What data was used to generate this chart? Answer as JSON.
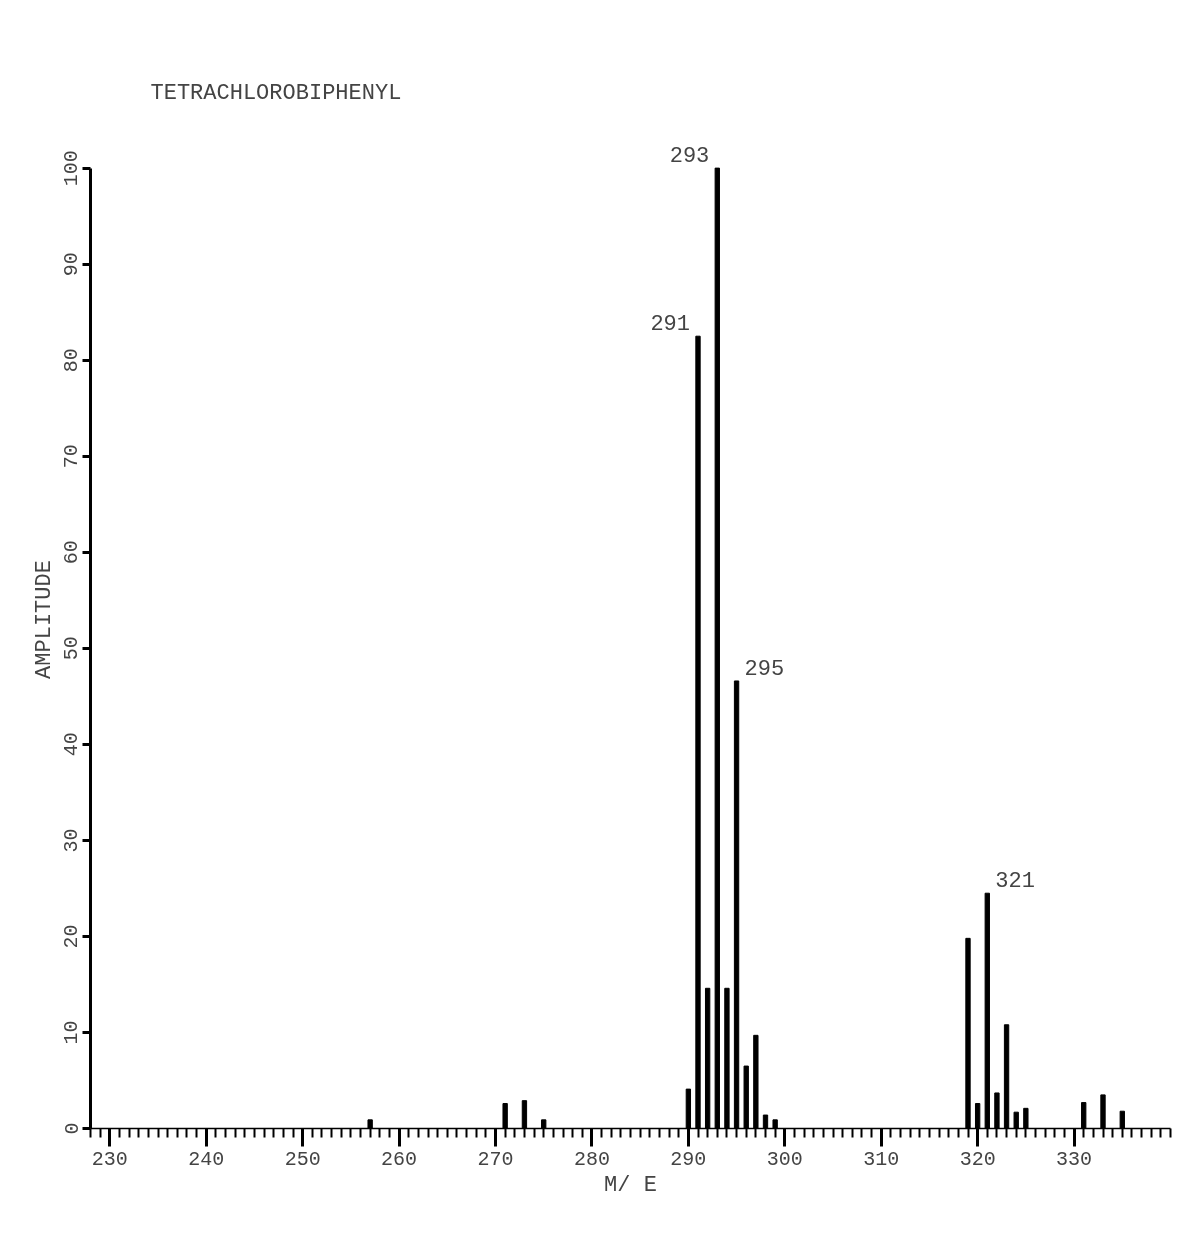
{
  "chart_data": {
    "type": "bar",
    "title": "TETRACHLOROBIPHENYL",
    "xlabel": "M/ E",
    "ylabel": "AMPLITUDE",
    "x": [
      257,
      271,
      273,
      275,
      290,
      291,
      292,
      293,
      294,
      295,
      296,
      297,
      298,
      299,
      319,
      320,
      321,
      322,
      323,
      324,
      325,
      331,
      333,
      335
    ],
    "values": [
      0.9,
      2.6,
      2.9,
      0.9,
      4.1,
      82.5,
      14.6,
      100,
      14.6,
      46.6,
      6.5,
      9.7,
      1.4,
      0.9,
      19.8,
      2.6,
      24.5,
      3.7,
      10.8,
      1.7,
      2.1,
      2.7,
      3.5,
      1.8
    ],
    "color": "#000000",
    "xlim": [
      228,
      340
    ],
    "ylim": [
      0,
      100
    ],
    "xticks": [
      230,
      240,
      250,
      260,
      270,
      280,
      290,
      300,
      310,
      320,
      330
    ],
    "yticks": [
      0,
      10,
      20,
      30,
      40,
      50,
      60,
      70,
      80,
      90,
      100
    ],
    "grid": false,
    "annotations": [
      {
        "text": "291",
        "x": 291,
        "y": 82.5
      },
      {
        "text": "293",
        "x": 293,
        "y": 100
      },
      {
        "text": "295",
        "x": 295,
        "y": 46.6
      },
      {
        "text": "321",
        "x": 321,
        "y": 24.5
      }
    ]
  }
}
